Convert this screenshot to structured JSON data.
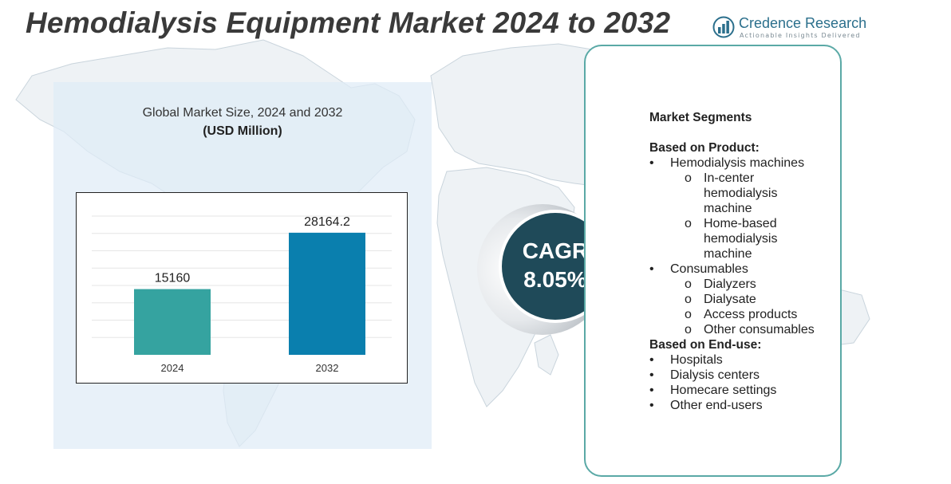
{
  "title": "Hemodialysis Equipment Market 2024 to 2032",
  "logo": {
    "name": "Credence Research",
    "tagline": "Actionable Insights Delivered"
  },
  "chart": {
    "title": "Global Market Size, 2024 and 2032",
    "unit": "(USD Million)"
  },
  "chart_data": {
    "type": "bar",
    "categories": [
      "2024",
      "2032"
    ],
    "values": [
      15160,
      28164.2
    ],
    "data_labels": [
      "15160",
      "28164.2"
    ],
    "bar_colors": [
      "#35a3a0",
      "#0a7fae"
    ],
    "title": "Global Market Size, 2024 and 2032",
    "ylabel": "(USD Million)",
    "ylim": [
      0,
      32000
    ],
    "grid": true,
    "legend": "none"
  },
  "cagr": {
    "label": "CAGR",
    "value": "8.05%"
  },
  "segments": {
    "heading": "Market Segments",
    "product_heading": "Based on Product:",
    "hemodialysis_machines": "Hemodialysis machines",
    "in_center": [
      "In-center",
      "hemodialysis",
      "machine"
    ],
    "home_based": [
      "Home-based",
      "hemodialysis",
      "machine"
    ],
    "consumables": "Consumables",
    "consumable_items": [
      "Dialyzers",
      "Dialysate",
      "Access products",
      "Other consumables"
    ],
    "enduse_heading": "Based on End-use:",
    "enduse_items": [
      "Hospitals",
      "Dialysis centers",
      "Homecare settings",
      "Other end-users"
    ],
    "bullet": "•",
    "sub_bullet": "o"
  },
  "colors": {
    "title": "#3a3a3a",
    "panel": "#dfebf6",
    "cagr_circle": "#1f4a59",
    "segment_border": "#5aa9a6",
    "logo": "#2b6f8c"
  }
}
